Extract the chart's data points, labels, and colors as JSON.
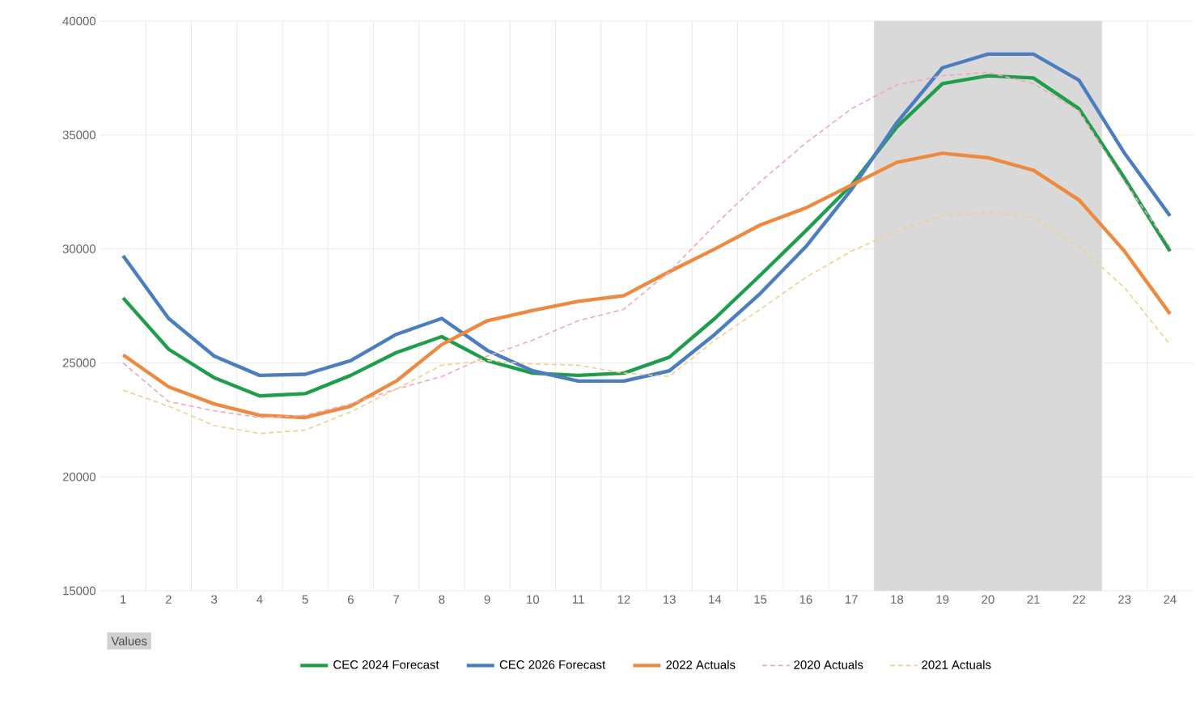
{
  "chart_data": {
    "type": "line",
    "x": [
      1,
      2,
      3,
      4,
      5,
      6,
      7,
      8,
      9,
      10,
      11,
      12,
      13,
      14,
      15,
      16,
      17,
      18,
      19,
      20,
      21,
      22,
      23,
      24
    ],
    "xlim": [
      0.5,
      24.5
    ],
    "xticks": [
      1,
      2,
      3,
      4,
      5,
      6,
      7,
      8,
      9,
      10,
      11,
      12,
      13,
      14,
      15,
      16,
      17,
      18,
      19,
      20,
      21,
      22,
      23,
      24
    ],
    "ylim": [
      15000,
      40000
    ],
    "yticks": [
      15000,
      20000,
      25000,
      30000,
      35000,
      40000
    ],
    "grid": true,
    "legend": "bottom",
    "marker": "none",
    "bands": [
      {
        "axis": "x",
        "from": 17.5,
        "to": 22.5,
        "color": "#d9d9d9"
      }
    ],
    "annotations": [
      "Values"
    ],
    "series": [
      {
        "name": "CEC 2024 Forecast",
        "color": "#1e9e4a",
        "line_style": "solid",
        "values": [
          27850,
          25600,
          24350,
          23550,
          23650,
          24450,
          25450,
          26150,
          25100,
          24550,
          24450,
          24550,
          25250,
          26950,
          28850,
          30800,
          32800,
          35350,
          37250,
          37600,
          37500,
          36150,
          33100,
          29900
        ]
      },
      {
        "name": "CEC 2026 Forecast",
        "color": "#4a7ebf",
        "line_style": "solid",
        "values": [
          29700,
          26950,
          25300,
          24450,
          24500,
          25100,
          26250,
          26950,
          25550,
          24650,
          24200,
          24200,
          24650,
          26250,
          28050,
          30100,
          32600,
          35550,
          37950,
          38550,
          38550,
          37400,
          34200,
          31450
        ]
      },
      {
        "name": "2022 Actuals",
        "color": "#ed8a3f",
        "line_style": "solid",
        "values": [
          25350,
          23950,
          23200,
          22700,
          22600,
          23100,
          24200,
          25800,
          26850,
          27300,
          27700,
          27950,
          29000,
          30000,
          31050,
          31800,
          32800,
          33800,
          34200,
          34000,
          33450,
          32150,
          29900,
          27150
        ]
      },
      {
        "name": "2020 Actuals",
        "color": "#f2a7b8",
        "line_style": "dashed",
        "values": [
          25000,
          23300,
          22900,
          22600,
          22700,
          23200,
          23850,
          24400,
          25300,
          26000,
          26850,
          27350,
          29000,
          31050,
          32950,
          34650,
          36150,
          37200,
          37600,
          37750,
          37250,
          36050,
          32950,
          30100
        ]
      },
      {
        "name": "2021 Actuals",
        "color": "#f0d08a",
        "line_style": "dashed",
        "values": [
          23800,
          23100,
          22250,
          21900,
          22050,
          22850,
          23850,
          24900,
          25100,
          24950,
          24900,
          24550,
          24400,
          26000,
          27350,
          28750,
          29900,
          30800,
          31450,
          31600,
          31400,
          30100,
          28300,
          25800
        ]
      }
    ]
  }
}
